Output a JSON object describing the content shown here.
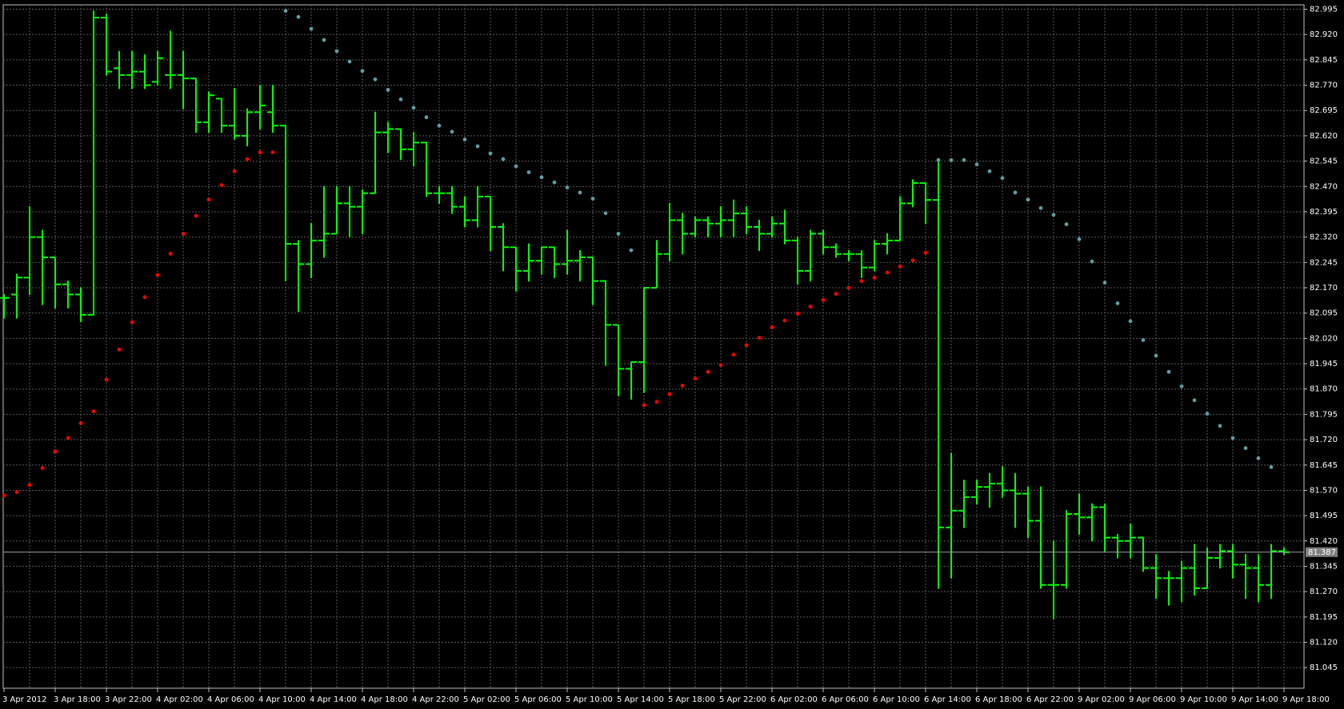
{
  "chart_data": {
    "type": "ohlc",
    "categories": [
      "3 Apr 2012",
      null,
      null,
      null,
      "3 Apr 18:00",
      null,
      null,
      null,
      "3 Apr 22:00",
      null,
      null,
      null,
      "4 Apr 02:00",
      null,
      null,
      null,
      "4 Apr 06:00",
      null,
      null,
      null,
      "4 Apr 10:00",
      null,
      null,
      null,
      "4 Apr 14:00",
      null,
      null,
      null,
      "4 Apr 18:00",
      null,
      null,
      null,
      "4 Apr 22:00",
      null,
      null,
      null,
      "5 Apr 02:00",
      null,
      null,
      null,
      "5 Apr 06:00",
      null,
      null,
      null,
      "5 Apr 10:00",
      null,
      null,
      null,
      "5 Apr 14:00",
      null,
      null,
      null,
      "5 Apr 18:00",
      null,
      null,
      null,
      "5 Apr 22:00",
      null,
      null,
      null,
      "6 Apr 02:00",
      null,
      null,
      null,
      "6 Apr 06:00",
      null,
      null,
      null,
      "6 Apr 10:00",
      null,
      null,
      null,
      "6 Apr 14:00",
      null,
      null,
      null,
      "6 Apr 18:00",
      null,
      null,
      null,
      "6 Apr 22:00",
      null,
      null,
      null,
      "9 Apr 02:00",
      null,
      null,
      null,
      "9 Apr 06:00",
      null,
      null,
      null,
      "9 Apr 10:00",
      null,
      null,
      null,
      "9 Apr 14:00",
      null,
      null,
      null,
      "9 Apr 18:00"
    ],
    "open": [
      82.14,
      82.15,
      82.2,
      82.32,
      82.26,
      82.18,
      82.15,
      82.09,
      82.97,
      82.82,
      82.8,
      82.81,
      82.78,
      82.8,
      82.8,
      82.79,
      82.66,
      82.73,
      82.65,
      82.62,
      82.69,
      82.69,
      82.65,
      82.3,
      82.24,
      82.31,
      82.33,
      82.42,
      82.41,
      82.45,
      82.63,
      82.64,
      82.58,
      82.6,
      82.45,
      82.45,
      82.41,
      82.37,
      82.44,
      82.35,
      82.29,
      82.22,
      82.25,
      82.29,
      82.24,
      82.25,
      82.26,
      82.19,
      82.06,
      81.93,
      81.95,
      82.17,
      82.27,
      82.37,
      82.33,
      82.37,
      82.36,
      82.37,
      82.39,
      82.35,
      82.33,
      82.36,
      82.31,
      82.22,
      82.33,
      82.29,
      82.27,
      82.27,
      82.23,
      82.3,
      82.31,
      82.42,
      82.48,
      82.43,
      81.46,
      81.51,
      81.55,
      81.58,
      81.59,
      81.57,
      81.56,
      81.48,
      81.29,
      81.29,
      81.5,
      81.49,
      81.52,
      81.43,
      81.42,
      81.43,
      81.34,
      81.31,
      81.31,
      81.34,
      81.28,
      81.37,
      81.39,
      81.35,
      81.34,
      81.29,
      81.39
    ],
    "high": [
      82.15,
      82.21,
      82.41,
      82.34,
      82.26,
      82.19,
      82.17,
      82.99,
      82.98,
      82.87,
      82.87,
      82.86,
      82.87,
      82.93,
      82.87,
      82.79,
      82.75,
      82.73,
      82.76,
      82.7,
      82.77,
      82.77,
      82.65,
      82.31,
      82.36,
      82.47,
      82.47,
      82.47,
      82.46,
      82.69,
      82.66,
      82.64,
      82.63,
      82.6,
      82.47,
      82.47,
      82.44,
      82.47,
      82.44,
      82.36,
      82.29,
      82.3,
      82.29,
      82.29,
      82.34,
      82.28,
      82.26,
      82.19,
      82.06,
      81.95,
      82.17,
      82.31,
      82.42,
      82.39,
      82.38,
      82.38,
      82.41,
      82.43,
      82.41,
      82.37,
      82.38,
      82.4,
      82.32,
      82.34,
      82.34,
      82.3,
      82.28,
      82.28,
      82.31,
      82.33,
      82.44,
      82.49,
      82.48,
      82.545,
      81.68,
      81.6,
      81.6,
      81.62,
      81.64,
      81.62,
      81.58,
      81.58,
      81.42,
      81.51,
      81.56,
      81.53,
      81.53,
      81.44,
      81.47,
      81.43,
      81.38,
      81.33,
      81.36,
      81.41,
      81.4,
      81.41,
      81.41,
      81.38,
      81.38,
      81.41,
      81.4
    ],
    "low": [
      82.08,
      82.08,
      82.15,
      82.12,
      82.11,
      82.11,
      82.07,
      82.09,
      82.8,
      82.76,
      82.76,
      82.76,
      82.77,
      82.76,
      82.7,
      82.63,
      82.63,
      82.63,
      82.61,
      82.59,
      82.64,
      82.63,
      82.19,
      82.1,
      82.2,
      82.26,
      82.33,
      82.32,
      82.33,
      82.45,
      82.57,
      82.55,
      82.53,
      82.44,
      82.42,
      82.39,
      82.35,
      82.35,
      82.28,
      82.22,
      82.16,
      82.19,
      82.21,
      82.2,
      82.21,
      82.19,
      82.12,
      81.94,
      81.85,
      81.84,
      81.86,
      82.17,
      82.25,
      82.27,
      82.32,
      82.32,
      82.32,
      82.32,
      82.33,
      82.28,
      82.32,
      82.3,
      82.18,
      82.19,
      82.27,
      82.26,
      82.25,
      82.2,
      82.22,
      82.27,
      82.31,
      82.41,
      82.36,
      81.28,
      81.31,
      81.46,
      81.53,
      81.52,
      81.55,
      81.46,
      81.43,
      81.28,
      81.19,
      81.28,
      81.44,
      81.42,
      81.39,
      81.37,
      81.37,
      81.33,
      81.25,
      81.23,
      81.24,
      81.26,
      81.28,
      81.34,
      81.31,
      81.25,
      81.24,
      81.25,
      81.38
    ],
    "close": [
      82.14,
      82.2,
      82.32,
      82.26,
      82.18,
      82.15,
      82.09,
      82.97,
      82.81,
      82.8,
      82.81,
      82.77,
      82.85,
      82.8,
      82.79,
      82.66,
      82.74,
      82.65,
      82.62,
      82.69,
      82.71,
      82.65,
      82.3,
      82.24,
      82.31,
      82.33,
      82.42,
      82.41,
      82.45,
      82.63,
      82.64,
      82.58,
      82.6,
      82.45,
      82.45,
      82.41,
      82.37,
      82.44,
      82.35,
      82.29,
      82.22,
      82.25,
      82.29,
      82.24,
      82.25,
      82.26,
      82.19,
      82.06,
      81.93,
      81.95,
      82.17,
      82.27,
      82.37,
      82.33,
      82.37,
      82.36,
      82.37,
      82.39,
      82.35,
      82.33,
      82.36,
      82.31,
      82.22,
      82.33,
      82.29,
      82.27,
      82.27,
      82.23,
      82.3,
      82.31,
      82.42,
      82.48,
      82.43,
      81.46,
      81.51,
      81.55,
      81.58,
      81.59,
      81.57,
      81.56,
      81.48,
      81.29,
      81.29,
      81.5,
      81.49,
      81.52,
      81.43,
      81.42,
      81.43,
      81.34,
      81.31,
      81.31,
      81.34,
      81.28,
      81.37,
      81.39,
      81.35,
      81.34,
      81.29,
      81.39,
      81.387
    ],
    "color": "#00ff00",
    "sar": {
      "values": [
        81.555,
        81.565,
        81.586,
        81.636,
        81.685,
        81.725,
        81.769,
        81.804,
        81.898,
        81.987,
        82.068,
        82.142,
        82.208,
        82.271,
        82.33,
        82.383,
        82.431,
        82.474,
        82.515,
        82.551,
        82.571,
        82.571,
        82.99,
        82.972,
        82.937,
        82.904,
        82.871,
        82.84,
        82.812,
        82.787,
        82.756,
        82.728,
        82.703,
        82.675,
        82.65,
        82.632,
        82.609,
        82.589,
        82.568,
        82.551,
        82.53,
        82.512,
        82.497,
        82.482,
        82.467,
        82.452,
        82.434,
        82.391,
        82.33,
        82.281,
        81.822,
        81.832,
        81.855,
        81.88,
        81.901,
        81.921,
        81.941,
        81.972,
        82.0,
        82.022,
        82.053,
        82.073,
        82.094,
        82.114,
        82.134,
        82.152,
        82.17,
        82.19,
        82.2,
        82.215,
        82.233,
        82.251,
        82.274,
        82.548,
        82.548,
        82.548,
        82.535,
        82.515,
        82.495,
        82.452,
        82.431,
        82.406,
        82.386,
        82.358,
        82.314,
        82.248,
        82.185,
        82.124,
        82.071,
        82.015,
        81.969,
        81.921,
        81.878,
        81.837,
        81.797,
        81.761,
        81.725,
        81.695,
        81.665,
        81.639,
        null
      ],
      "color_below": "#ff0000",
      "color_above": "#5f9ea0"
    },
    "current_price": 81.387,
    "ylim": [
      80.984,
      83.008
    ],
    "yticks": [
      82.995,
      {
        "value": 82.92,
        "label": "82.920"
      },
      82.845,
      {
        "value": 82.77,
        "label": "82.770"
      },
      82.695,
      {
        "value": 82.62,
        "label": "82.620"
      },
      82.545,
      {
        "value": 82.47,
        "label": "82.470"
      },
      82.395,
      {
        "value": 82.32,
        "label": "82.320"
      },
      82.245,
      {
        "value": 82.17,
        "label": "82.170"
      },
      82.095,
      {
        "value": 82.02,
        "label": "82.020"
      },
      81.945,
      {
        "value": 81.87,
        "label": "81.870"
      },
      81.795,
      {
        "value": 81.72,
        "label": "81.720"
      },
      81.645,
      {
        "value": 81.57,
        "label": "81.570"
      },
      81.495,
      {
        "value": 81.42,
        "label": "81.420"
      },
      81.345,
      {
        "value": 81.27,
        "label": "81.270"
      },
      81.195,
      {
        "value": 81.12,
        "label": "81.120"
      },
      81.045
    ],
    "grid": true
  }
}
